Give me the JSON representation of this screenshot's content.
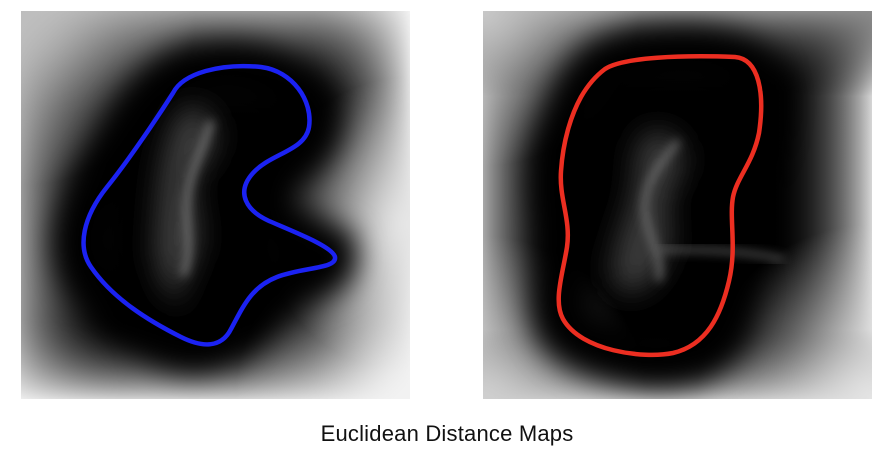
{
  "caption": "Euclidean Distance Maps",
  "panels": [
    {
      "contour_color": "#1b22f2"
    },
    {
      "contour_color": "#ec2e21"
    }
  ]
}
